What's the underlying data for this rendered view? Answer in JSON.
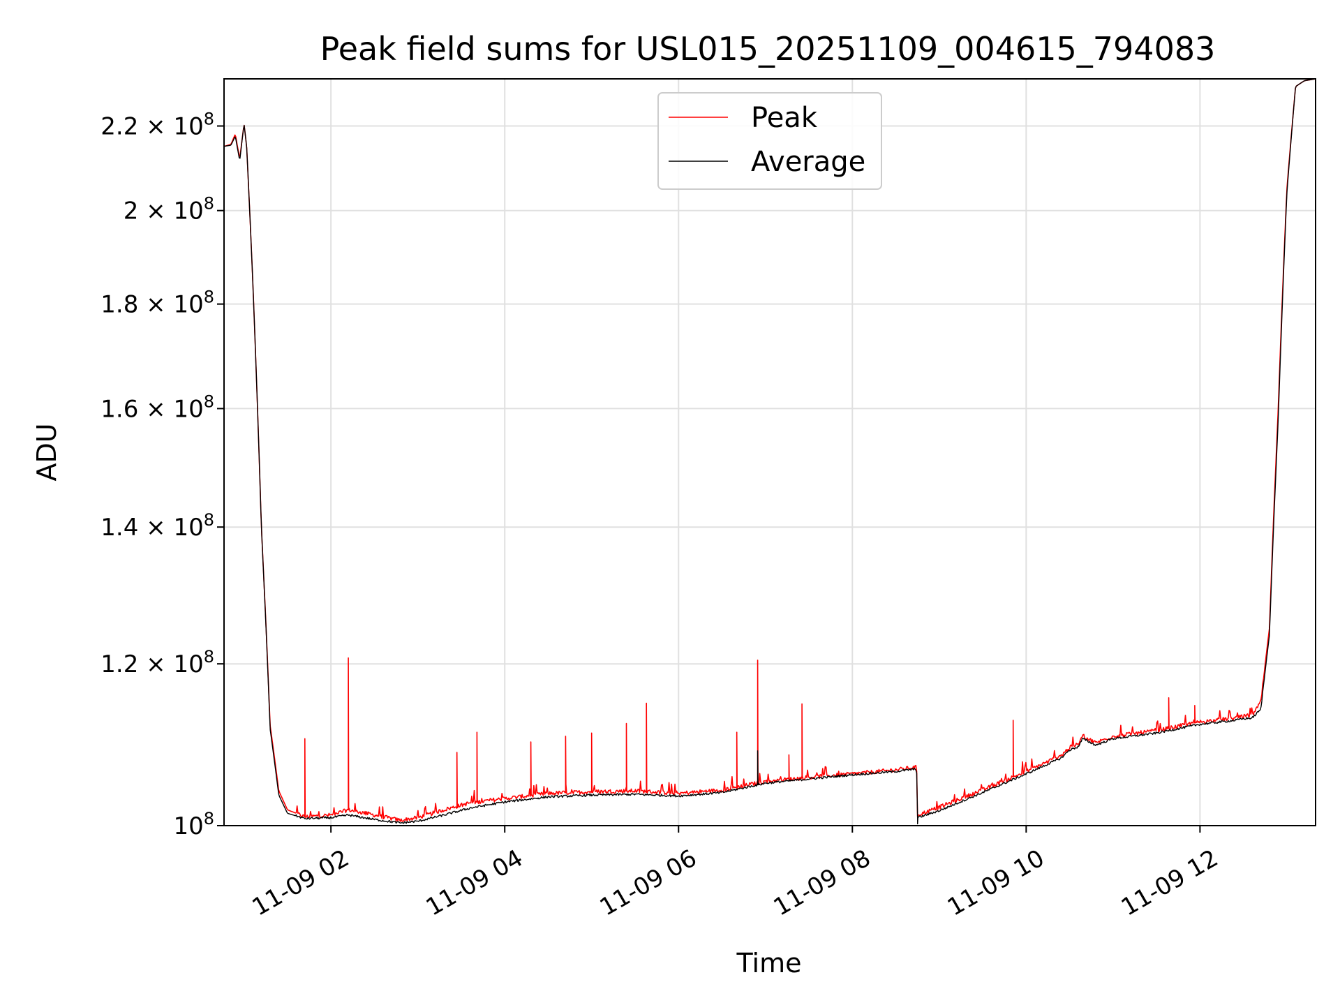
{
  "chart_data": {
    "type": "line",
    "title": "Peak field sums for USL015_20251109_004615_794083",
    "xlabel": "Time",
    "ylabel": "ADU",
    "x_unit": "hours since 2025-11-09 00:00",
    "xlim": [
      0.77,
      13.33
    ],
    "ylim": [
      100000000,
      232000000
    ],
    "yscale": "log",
    "grid": true,
    "legend_position": "top-center",
    "x_ticks": [
      {
        "value": 2,
        "label": "11-09 02"
      },
      {
        "value": 4,
        "label": "11-09 04"
      },
      {
        "value": 6,
        "label": "11-09 06"
      },
      {
        "value": 8,
        "label": "11-09 08"
      },
      {
        "value": 10,
        "label": "11-09 10"
      },
      {
        "value": 12,
        "label": "11-09 12"
      }
    ],
    "y_ticks": [
      {
        "value": 100000000,
        "mantissa": "",
        "exponent": "8"
      },
      {
        "value": 120000000,
        "mantissa": "1.2",
        "exponent": "8"
      },
      {
        "value": 140000000,
        "mantissa": "1.4",
        "exponent": "8"
      },
      {
        "value": 160000000,
        "mantissa": "1.6",
        "exponent": "8"
      },
      {
        "value": 180000000,
        "mantissa": "1.8",
        "exponent": "8"
      },
      {
        "value": 200000000,
        "mantissa": "2",
        "exponent": "8"
      },
      {
        "value": 220000000,
        "mantissa": "2.2",
        "exponent": "8"
      }
    ],
    "series": [
      {
        "name": "Peak",
        "color": "#ff0000",
        "x": [
          0.77,
          0.85,
          0.9,
          0.95,
          1.0,
          1.03,
          1.1,
          1.2,
          1.3,
          1.4,
          1.5,
          1.7,
          2.0,
          2.2,
          2.5,
          2.8,
          3.0,
          3.3,
          3.6,
          4.0,
          4.5,
          5.0,
          5.5,
          6.0,
          6.5,
          7.0,
          7.5,
          8.0,
          8.5,
          8.74,
          8.75,
          9.0,
          9.5,
          10.0,
          10.4,
          10.5,
          10.6,
          10.65,
          10.8,
          11.0,
          11.5,
          12.0,
          12.4,
          12.5,
          12.6,
          12.7,
          12.8,
          12.9,
          13.0,
          13.1,
          13.2,
          13.33
        ],
        "y": [
          215000000,
          215500000,
          218000000,
          212000000,
          220500000,
          215000000,
          185000000,
          140000000,
          112000000,
          104000000,
          101800000,
          101000000,
          101200000,
          101800000,
          101200000,
          100600000,
          100900000,
          101800000,
          102600000,
          103100000,
          103700000,
          103900000,
          104000000,
          103700000,
          104100000,
          105100000,
          105600000,
          106000000,
          106500000,
          106800000,
          101200000,
          102100000,
          104100000,
          106300000,
          108200000,
          109200000,
          109600000,
          110600000,
          109800000,
          110600000,
          111300000,
          112400000,
          112900000,
          113100000,
          113300000,
          114900000,
          125000000,
          160000000,
          205000000,
          230000000,
          231500000,
          232000000
        ],
        "spikes": [
          {
            "x": 2.2,
            "y": 120800000
          },
          {
            "x": 1.7,
            "y": 110300000
          },
          {
            "x": 3.45,
            "y": 108600000
          },
          {
            "x": 3.68,
            "y": 111100000
          },
          {
            "x": 4.3,
            "y": 109900000
          },
          {
            "x": 4.7,
            "y": 110600000
          },
          {
            "x": 5.0,
            "y": 111000000
          },
          {
            "x": 5.4,
            "y": 112200000
          },
          {
            "x": 5.63,
            "y": 114800000
          },
          {
            "x": 6.67,
            "y": 111100000
          },
          {
            "x": 6.91,
            "y": 120500000
          },
          {
            "x": 7.27,
            "y": 108300000
          },
          {
            "x": 7.42,
            "y": 114700000
          },
          {
            "x": 9.85,
            "y": 112600000
          },
          {
            "x": 11.64,
            "y": 115500000
          },
          {
            "x": 11.94,
            "y": 114500000
          }
        ]
      },
      {
        "name": "Average",
        "color": "#000000",
        "x": [
          0.77,
          0.85,
          0.9,
          0.95,
          1.0,
          1.03,
          1.1,
          1.2,
          1.3,
          1.4,
          1.5,
          1.7,
          2.0,
          2.2,
          2.5,
          2.8,
          3.0,
          3.3,
          3.6,
          4.0,
          4.5,
          5.0,
          5.5,
          6.0,
          6.5,
          7.0,
          7.5,
          8.0,
          8.5,
          8.74,
          8.75,
          9.0,
          9.5,
          10.0,
          10.4,
          10.5,
          10.6,
          10.65,
          10.8,
          11.0,
          11.5,
          12.0,
          12.4,
          12.5,
          12.6,
          12.7,
          12.8,
          12.9,
          13.0,
          13.1,
          13.2,
          13.33
        ],
        "y": [
          215000000,
          215300000,
          217500000,
          211500000,
          220500000,
          215000000,
          185000000,
          140000000,
          111500000,
          103500000,
          101400000,
          100800000,
          100900000,
          101200000,
          100700000,
          100300000,
          100500000,
          101200000,
          102000000,
          102700000,
          103300000,
          103500000,
          103600000,
          103400000,
          103800000,
          104900000,
          105400000,
          105900000,
          106300000,
          106600000,
          100900000,
          101700000,
          103800000,
          106000000,
          107900000,
          108900000,
          109300000,
          110300000,
          109500000,
          110300000,
          111000000,
          112100000,
          112600000,
          112800000,
          112900000,
          114000000,
          124000000,
          158000000,
          204000000,
          230000000,
          231500000,
          232000000
        ],
        "spikes": [
          {
            "x": 6.91,
            "y": 108800000
          },
          {
            "x": 8.75,
            "y": 100200000
          }
        ]
      }
    ]
  }
}
